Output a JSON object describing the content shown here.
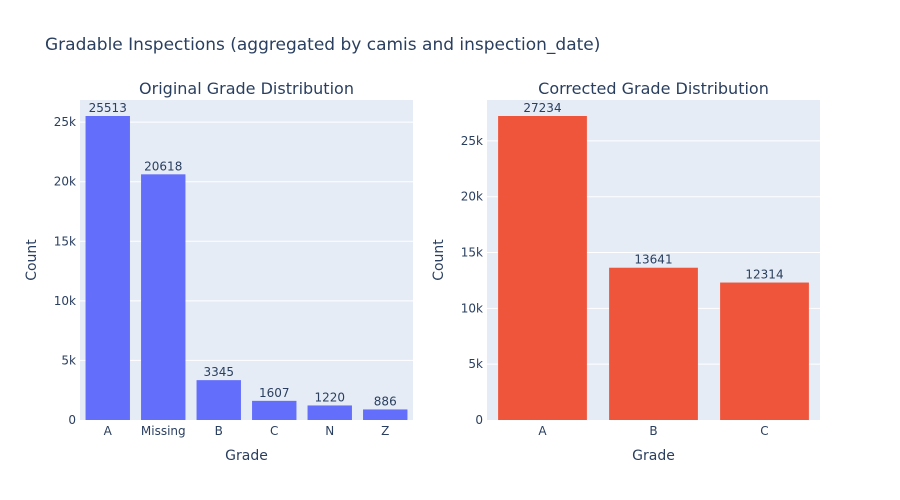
{
  "figure": {
    "title": "Gradable Inspections (aggregated by camis and inspection_date)"
  },
  "chart_data": [
    {
      "type": "bar",
      "title": "Original Grade Distribution",
      "xlabel": "Grade",
      "ylabel": "Count",
      "categories": [
        "A",
        "Missing",
        "B",
        "C",
        "N",
        "Z"
      ],
      "values": [
        25513,
        20618,
        3345,
        1607,
        1220,
        886
      ],
      "ylim": [
        0,
        26856
      ],
      "yticks": [
        0,
        5000,
        10000,
        15000,
        20000,
        25000
      ],
      "ytick_labels": [
        "0",
        "5k",
        "10k",
        "15k",
        "20k",
        "25k"
      ],
      "bar_color": "#636efa",
      "grid": true
    },
    {
      "type": "bar",
      "title": "Corrected Grade Distribution",
      "xlabel": "Grade",
      "ylabel": "Count",
      "categories": [
        "A",
        "B",
        "C"
      ],
      "values": [
        27234,
        13641,
        12314
      ],
      "ylim": [
        0,
        28667
      ],
      "yticks": [
        0,
        5000,
        10000,
        15000,
        20000,
        25000
      ],
      "ytick_labels": [
        "0",
        "5k",
        "10k",
        "15k",
        "20k",
        "25k"
      ],
      "bar_color": "#ef553b",
      "grid": true
    }
  ]
}
